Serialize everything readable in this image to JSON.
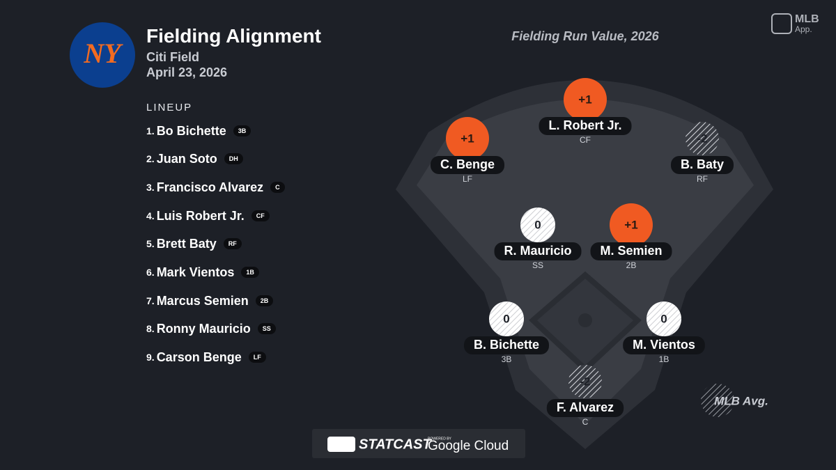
{
  "header": {
    "logo": "NY",
    "title": "Fielding Alignment",
    "venue": "Citi Field",
    "date": "April 23, 2026"
  },
  "lineup": {
    "heading": "LINEUP",
    "players": [
      {
        "order": "1.",
        "name": "Bo Bichette",
        "position": "3B"
      },
      {
        "order": "2.",
        "name": "Juan Soto",
        "position": "DH"
      },
      {
        "order": "3.",
        "name": "Francisco Alvarez",
        "position": "C"
      },
      {
        "order": "4.",
        "name": "Luis Robert Jr.",
        "position": "CF"
      },
      {
        "order": "5.",
        "name": "Brett Baty",
        "position": "RF"
      },
      {
        "order": "6.",
        "name": "Mark Vientos",
        "position": "1B"
      },
      {
        "order": "7.",
        "name": "Marcus Semien",
        "position": "2B"
      },
      {
        "order": "8.",
        "name": "Ronny Mauricio",
        "position": "SS"
      },
      {
        "order": "9.",
        "name": "Carson Benge",
        "position": "LF"
      }
    ]
  },
  "field": {
    "title": "Fielding Run Value, 2026",
    "players": [
      {
        "value": "+1",
        "name": "C. Benge",
        "position": "LF"
      },
      {
        "value": "+1",
        "name": "L. Robert Jr.",
        "position": "CF"
      },
      {
        "value": "-2",
        "name": "B. Baty",
        "position": "RF"
      },
      {
        "value": "0",
        "name": "R. Mauricio",
        "position": "SS"
      },
      {
        "value": "+1",
        "name": "M. Semien",
        "position": "2B"
      },
      {
        "value": "0",
        "name": "B. Bichette",
        "position": "3B"
      },
      {
        "value": "0",
        "name": "M. Vientos",
        "position": "1B"
      },
      {
        "value": "-2",
        "name": "F. Alvarez",
        "position": "C"
      }
    ],
    "legend": "MLB Avg."
  },
  "brand": {
    "app": "MLB",
    "app_sub": "App."
  },
  "footer": {
    "statcast": "STATCAST",
    "powered": "POWERED BY",
    "cloud": "Google Cloud"
  }
}
